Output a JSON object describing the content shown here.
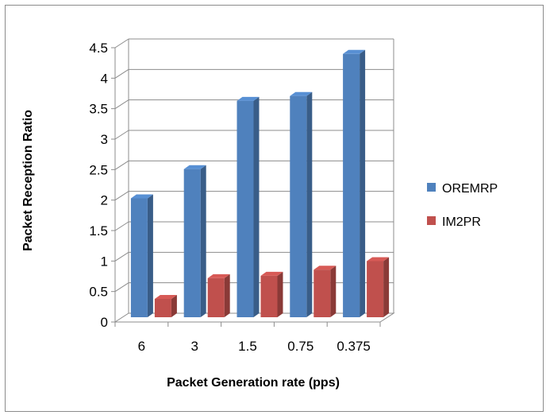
{
  "chart_data": {
    "type": "bar",
    "title": "",
    "xlabel": "Packet Generation rate (pps)",
    "ylabel": "Packet Reception Ratio",
    "categories": [
      "6",
      "3",
      "1.5",
      "0.75",
      "0.375"
    ],
    "ylim": [
      0,
      4.5
    ],
    "yticks": [
      "0",
      "0.5",
      "1",
      "1.5",
      "2",
      "2.5",
      "3",
      "3.5",
      "4",
      "4.5"
    ],
    "grid": true,
    "legend_position": "right",
    "series": [
      {
        "name": "OREMRP",
        "color": "#4f81bd",
        "values": [
          1.95,
          2.43,
          3.55,
          3.63,
          4.32
        ]
      },
      {
        "name": "IM2PR",
        "color": "#c0504d",
        "values": [
          0.3,
          0.64,
          0.68,
          0.78,
          0.92
        ]
      }
    ]
  }
}
